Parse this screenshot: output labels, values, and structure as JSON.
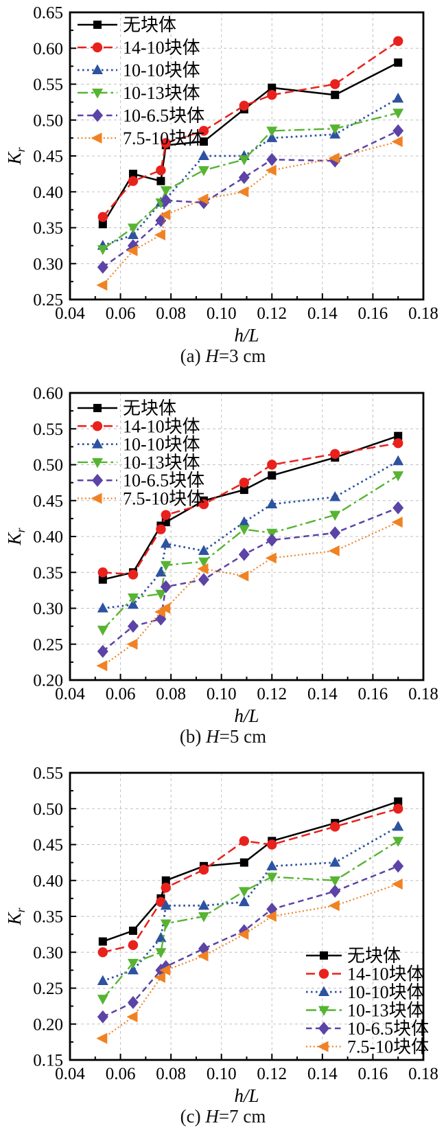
{
  "page": {
    "background": "#ffffff"
  },
  "axis": {
    "xlabel": "h/L",
    "ylabel": "K",
    "ylabel_sub": "r"
  },
  "chart_data": [
    {
      "id": "a",
      "type": "line",
      "caption": {
        "pre": "(a) ",
        "h": "H",
        "post": "=3 cm"
      },
      "xlabel": "h/L",
      "ylabel": "K",
      "ylabel_sub": "r",
      "xlim": [
        0.04,
        0.18
      ],
      "ylim": [
        0.25,
        0.65
      ],
      "xtick_labels": [
        "0.04",
        "0.06",
        "0.08",
        "0.10",
        "0.12",
        "0.14",
        "0.16",
        "0.18"
      ],
      "ytick_labels": [
        "0.25",
        "0.30",
        "0.35",
        "0.40",
        "0.45",
        "0.50",
        "0.55",
        "0.60",
        "0.65"
      ],
      "grid": true,
      "legend_pos": "top-left",
      "x": [
        0.053,
        0.065,
        0.076,
        0.078,
        0.093,
        0.109,
        0.12,
        0.145,
        0.17
      ],
      "series": [
        {
          "key": "no-blocks",
          "name": "无块体",
          "color": "#000000",
          "marker": "square",
          "line": "solid",
          "values": [
            0.355,
            0.425,
            0.415,
            0.465,
            0.47,
            0.515,
            0.545,
            0.535,
            0.58
          ]
        },
        {
          "key": "blocks-14-10",
          "name": "14-10块体",
          "color": "#e8211d",
          "marker": "circle",
          "line": "dash",
          "values": [
            0.365,
            0.415,
            0.43,
            0.468,
            0.485,
            0.52,
            0.535,
            0.55,
            0.61
          ]
        },
        {
          "key": "blocks-10-10",
          "name": "10-10块体",
          "color": "#2d52a0",
          "marker": "triangle-up",
          "line": "dot",
          "values": [
            0.325,
            0.34,
            0.385,
            0.39,
            0.45,
            0.45,
            0.475,
            0.48,
            0.53
          ]
        },
        {
          "key": "blocks-10-13",
          "name": "10-13块体",
          "color": "#56b432",
          "marker": "triangle-down",
          "line": "dashdot",
          "values": [
            0.32,
            0.35,
            0.385,
            0.402,
            0.43,
            0.445,
            0.485,
            0.488,
            0.51
          ]
        },
        {
          "key": "blocks-10-6_5",
          "name": "10-6.5块体",
          "color": "#5c43a6",
          "marker": "diamond",
          "line": "dash-med",
          "values": [
            0.295,
            0.325,
            0.36,
            0.388,
            0.385,
            0.42,
            0.445,
            0.443,
            0.485
          ]
        },
        {
          "key": "blocks-7_5-10",
          "name": "7.5-10块体",
          "color": "#f08223",
          "marker": "triangle-left",
          "line": "dot-fine",
          "values": [
            0.27,
            0.318,
            0.34,
            0.368,
            0.39,
            0.4,
            0.43,
            0.447,
            0.47
          ]
        }
      ]
    },
    {
      "id": "b",
      "type": "line",
      "caption": {
        "pre": "(b) ",
        "h": "H",
        "post": "=5 cm"
      },
      "xlabel": "h/L",
      "ylabel": "K",
      "ylabel_sub": "r",
      "xlim": [
        0.04,
        0.18
      ],
      "ylim": [
        0.2,
        0.6
      ],
      "xtick_labels": [
        "0.04",
        "0.06",
        "0.08",
        "0.10",
        "0.12",
        "0.14",
        "0.16",
        "0.18"
      ],
      "ytick_labels": [
        "0.20",
        "0.25",
        "0.30",
        "0.35",
        "0.40",
        "0.45",
        "0.50",
        "0.55",
        "0.60"
      ],
      "grid": true,
      "legend_pos": "top-left",
      "x": [
        0.053,
        0.065,
        0.076,
        0.078,
        0.093,
        0.109,
        0.12,
        0.145,
        0.17
      ],
      "series": [
        {
          "key": "no-blocks",
          "name": "无块体",
          "color": "#000000",
          "marker": "square",
          "line": "solid",
          "values": [
            0.34,
            0.35,
            0.415,
            0.42,
            0.45,
            0.465,
            0.485,
            0.51,
            0.54
          ]
        },
        {
          "key": "blocks-14-10",
          "name": "14-10块体",
          "color": "#e8211d",
          "marker": "circle",
          "line": "dash",
          "values": [
            0.35,
            0.347,
            0.41,
            0.43,
            0.445,
            0.475,
            0.5,
            0.515,
            0.53
          ]
        },
        {
          "key": "blocks-10-10",
          "name": "10-10块体",
          "color": "#2d52a0",
          "marker": "triangle-up",
          "line": "dot",
          "values": [
            0.3,
            0.305,
            0.35,
            0.39,
            0.38,
            0.42,
            0.445,
            0.455,
            0.505
          ]
        },
        {
          "key": "blocks-10-13",
          "name": "10-13块体",
          "color": "#56b432",
          "marker": "triangle-down",
          "line": "dashdot",
          "values": [
            0.27,
            0.315,
            0.32,
            0.36,
            0.365,
            0.41,
            0.405,
            0.43,
            0.485
          ]
        },
        {
          "key": "blocks-10-6_5",
          "name": "10-6.5块体",
          "color": "#5c43a6",
          "marker": "diamond",
          "line": "dash-med",
          "values": [
            0.24,
            0.275,
            0.285,
            0.33,
            0.34,
            0.375,
            0.395,
            0.405,
            0.44
          ]
        },
        {
          "key": "blocks-7_5-10",
          "name": "7.5-10块体",
          "color": "#f08223",
          "marker": "triangle-left",
          "line": "dot-fine",
          "values": [
            0.22,
            0.25,
            0.295,
            0.3,
            0.355,
            0.345,
            0.37,
            0.38,
            0.42
          ]
        }
      ]
    },
    {
      "id": "c",
      "type": "line",
      "caption": {
        "pre": "(c) ",
        "h": "H",
        "post": "=7 cm"
      },
      "xlabel": "h/L",
      "ylabel": "K",
      "ylabel_sub": "r",
      "xlim": [
        0.04,
        0.18
      ],
      "ylim": [
        0.15,
        0.55
      ],
      "xtick_labels": [
        "0.04",
        "0.06",
        "0.08",
        "0.10",
        "0.12",
        "0.14",
        "0.16",
        "0.18"
      ],
      "ytick_labels": [
        "0.15",
        "0.20",
        "0.25",
        "0.30",
        "0.35",
        "0.40",
        "0.45",
        "0.50",
        "0.55"
      ],
      "grid": true,
      "legend_pos": "bottom-right",
      "x": [
        0.053,
        0.065,
        0.076,
        0.078,
        0.093,
        0.109,
        0.12,
        0.145,
        0.17
      ],
      "series": [
        {
          "key": "no-blocks",
          "name": "无块体",
          "color": "#000000",
          "marker": "square",
          "line": "solid",
          "values": [
            0.315,
            0.33,
            0.375,
            0.4,
            0.42,
            0.425,
            0.455,
            0.48,
            0.51
          ]
        },
        {
          "key": "blocks-14-10",
          "name": "14-10块体",
          "color": "#e8211d",
          "marker": "circle",
          "line": "dash",
          "values": [
            0.3,
            0.31,
            0.37,
            0.39,
            0.415,
            0.455,
            0.45,
            0.475,
            0.5
          ]
        },
        {
          "key": "blocks-10-10",
          "name": "10-10块体",
          "color": "#2d52a0",
          "marker": "triangle-up",
          "line": "dot",
          "values": [
            0.26,
            0.275,
            0.32,
            0.365,
            0.365,
            0.37,
            0.42,
            0.425,
            0.475
          ]
        },
        {
          "key": "blocks-10-13",
          "name": "10-13块体",
          "color": "#56b432",
          "marker": "triangle-down",
          "line": "dashdot",
          "values": [
            0.235,
            0.285,
            0.3,
            0.34,
            0.35,
            0.385,
            0.405,
            0.4,
            0.455
          ]
        },
        {
          "key": "blocks-10-6_5",
          "name": "10-6.5块体",
          "color": "#5c43a6",
          "marker": "diamond",
          "line": "dash-med",
          "values": [
            0.21,
            0.23,
            0.275,
            0.28,
            0.305,
            0.33,
            0.36,
            0.385,
            0.42
          ]
        },
        {
          "key": "blocks-7_5-10",
          "name": "7.5-10块体",
          "color": "#f08223",
          "marker": "triangle-left",
          "line": "dot-fine",
          "values": [
            0.18,
            0.21,
            0.265,
            0.275,
            0.295,
            0.325,
            0.35,
            0.365,
            0.395
          ]
        }
      ]
    }
  ]
}
